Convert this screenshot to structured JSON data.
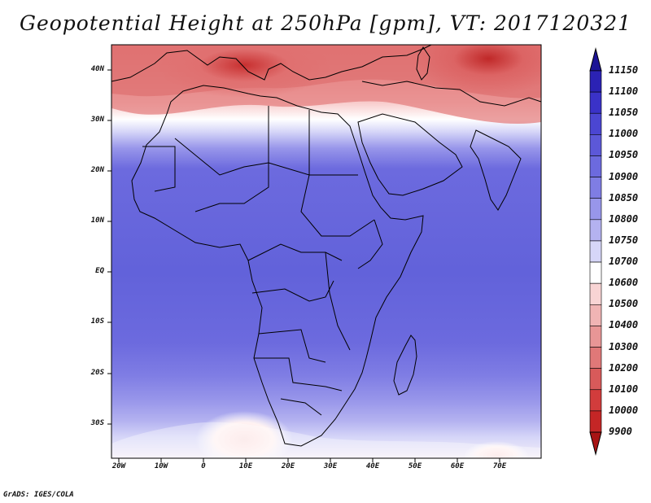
{
  "title": "Geopotential Height at 250hPa [gpm], VT: 2017120321",
  "footer": "GrADS: IGES/COLA",
  "map": {
    "lat_labels": [
      "40N",
      "30N",
      "20N",
      "10N",
      "EQ",
      "10S",
      "20S",
      "30S"
    ],
    "lon_labels": [
      "20W",
      "10W",
      "0",
      "10E",
      "20E",
      "30E",
      "40E",
      "50E",
      "60E",
      "70E"
    ]
  },
  "colorbar": {
    "labels": [
      "11150",
      "11100",
      "11050",
      "11000",
      "10950",
      "10900",
      "10850",
      "10800",
      "10750",
      "10700",
      "10600",
      "10500",
      "10400",
      "10300",
      "10200",
      "10100",
      "10000",
      "9900"
    ],
    "colors": [
      "#1c1496",
      "#2b22b4",
      "#3a32c8",
      "#4b46d2",
      "#5c58d8",
      "#6c6ade",
      "#7f7de4",
      "#9896ea",
      "#b4b2f0",
      "#d6d6f8",
      "#ffffff",
      "#f8d4d4",
      "#f0b4b4",
      "#e89696",
      "#e07878",
      "#d85a5a",
      "#d23c3c",
      "#c42626",
      "#a81414"
    ]
  },
  "colors": {
    "land_outline": "#000000",
    "background": "#ffffff"
  }
}
